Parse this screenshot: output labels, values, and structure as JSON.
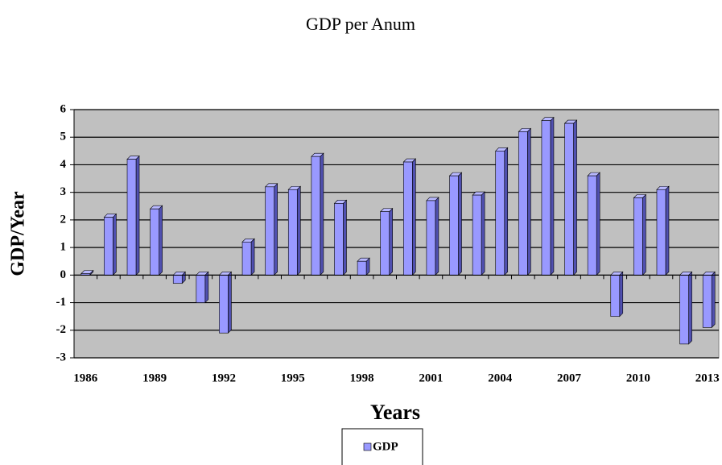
{
  "chart_data": {
    "type": "bar",
    "title": "GDP per Anum",
    "x_label": "Years",
    "y_label": "GDP/Year",
    "categories": [
      "1986",
      null,
      null,
      "1989",
      null,
      null,
      "1992",
      null,
      null,
      "1995",
      null,
      null,
      "1998",
      null,
      null,
      "2001",
      null,
      null,
      "2004",
      null,
      null,
      "2007",
      null,
      null,
      "2010",
      null,
      null,
      "2013"
    ],
    "series": [
      {
        "name": "GDP",
        "color": "#9999ff",
        "values": [
          0.05,
          2.1,
          4.2,
          2.4,
          -0.3,
          -1.0,
          -2.1,
          1.2,
          3.2,
          3.1,
          4.3,
          2.6,
          0.5,
          2.3,
          4.1,
          2.7,
          3.6,
          2.9,
          4.5,
          5.2,
          5.6,
          5.5,
          3.6,
          -1.5,
          2.8,
          3.1,
          -2.5,
          -1.9
        ]
      }
    ],
    "ylim": [
      -3,
      6
    ],
    "yticks": [
      -3,
      -2,
      -1,
      0,
      1,
      2,
      3,
      4,
      5,
      6
    ],
    "grid": true,
    "legend": "bottom"
  }
}
